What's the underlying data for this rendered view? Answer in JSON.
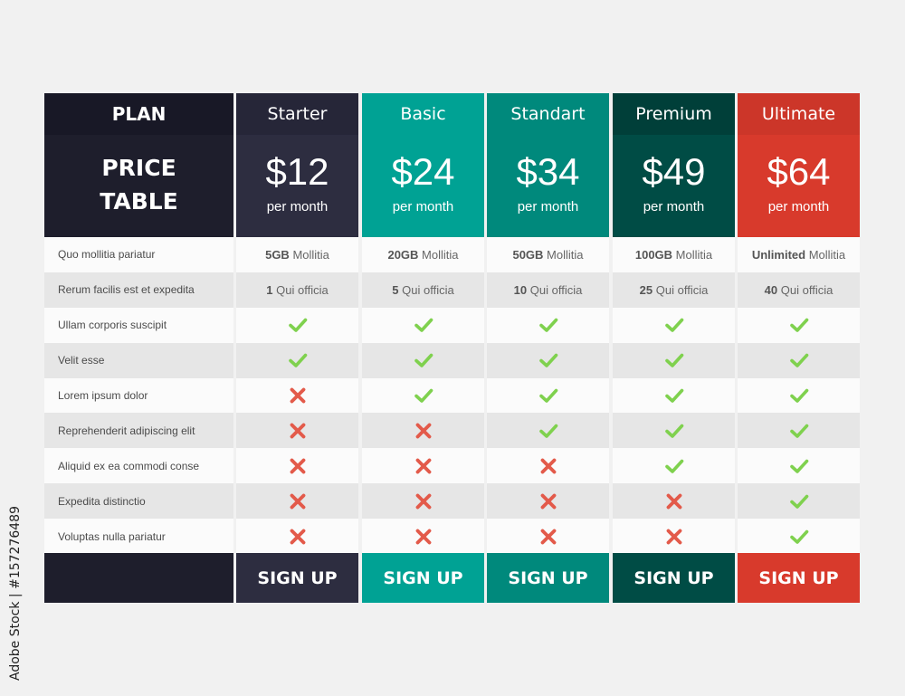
{
  "watermark_side": "Adobe Stock | #157276489",
  "labels": {
    "plan": "PLAN",
    "price_table_line1": "PRICE",
    "price_table_line2": "TABLE"
  },
  "features": [
    "Quo mollitia pariatur",
    "Rerum facilis est et expedita",
    "Ullam corporis suscipit",
    "Velit esse",
    "Lorem ipsum dolor",
    "Reprehenderit adipiscing elit",
    "Aliquid ex ea commodi conse",
    "Expedita distinctio",
    "Voluptas nulla pariatur"
  ],
  "colors": {
    "label_dark": "#1e1e2c",
    "starter": "#2d2d40",
    "basic": "#00a294",
    "standart": "#00897c",
    "premium": "#004c45",
    "ultimate": "#d83a2c",
    "check": "#7fd14e",
    "cross": "#e35a4a"
  },
  "plans": [
    {
      "name": "Starter",
      "price": "$12",
      "per": "per month",
      "storage_bold": "5GB",
      "storage_text": " Mollitia",
      "office_bold": "1",
      "office_text": " Qui officia",
      "checks": [
        "yes",
        "yes",
        "no",
        "no",
        "no",
        "no",
        "no"
      ],
      "signup": "SIGN UP"
    },
    {
      "name": "Basic",
      "price": "$24",
      "per": "per month",
      "storage_bold": "20GB",
      "storage_text": " Mollitia",
      "office_bold": "5",
      "office_text": " Qui officia",
      "checks": [
        "yes",
        "yes",
        "yes",
        "no",
        "no",
        "no",
        "no"
      ],
      "signup": "SIGN UP"
    },
    {
      "name": "Standart",
      "price": "$34",
      "per": "per month",
      "storage_bold": "50GB",
      "storage_text": " Mollitia",
      "office_bold": "10",
      "office_text": " Qui officia",
      "checks": [
        "yes",
        "yes",
        "yes",
        "yes",
        "no",
        "no",
        "no"
      ],
      "signup": "SIGN UP"
    },
    {
      "name": "Premium",
      "price": "$49",
      "per": "per month",
      "storage_bold": "100GB",
      "storage_text": " Mollitia",
      "office_bold": "25",
      "office_text": " Qui officia",
      "checks": [
        "yes",
        "yes",
        "yes",
        "yes",
        "yes",
        "no",
        "no"
      ],
      "signup": "SIGN UP"
    },
    {
      "name": "Ultimate",
      "price": "$64",
      "per": "per month",
      "storage_bold": "Unlimited",
      "storage_text": " Mollitia",
      "office_bold": "40",
      "office_text": " Qui officia",
      "checks": [
        "yes",
        "yes",
        "yes",
        "yes",
        "yes",
        "yes",
        "yes"
      ],
      "signup": "SIGN UP"
    }
  ]
}
